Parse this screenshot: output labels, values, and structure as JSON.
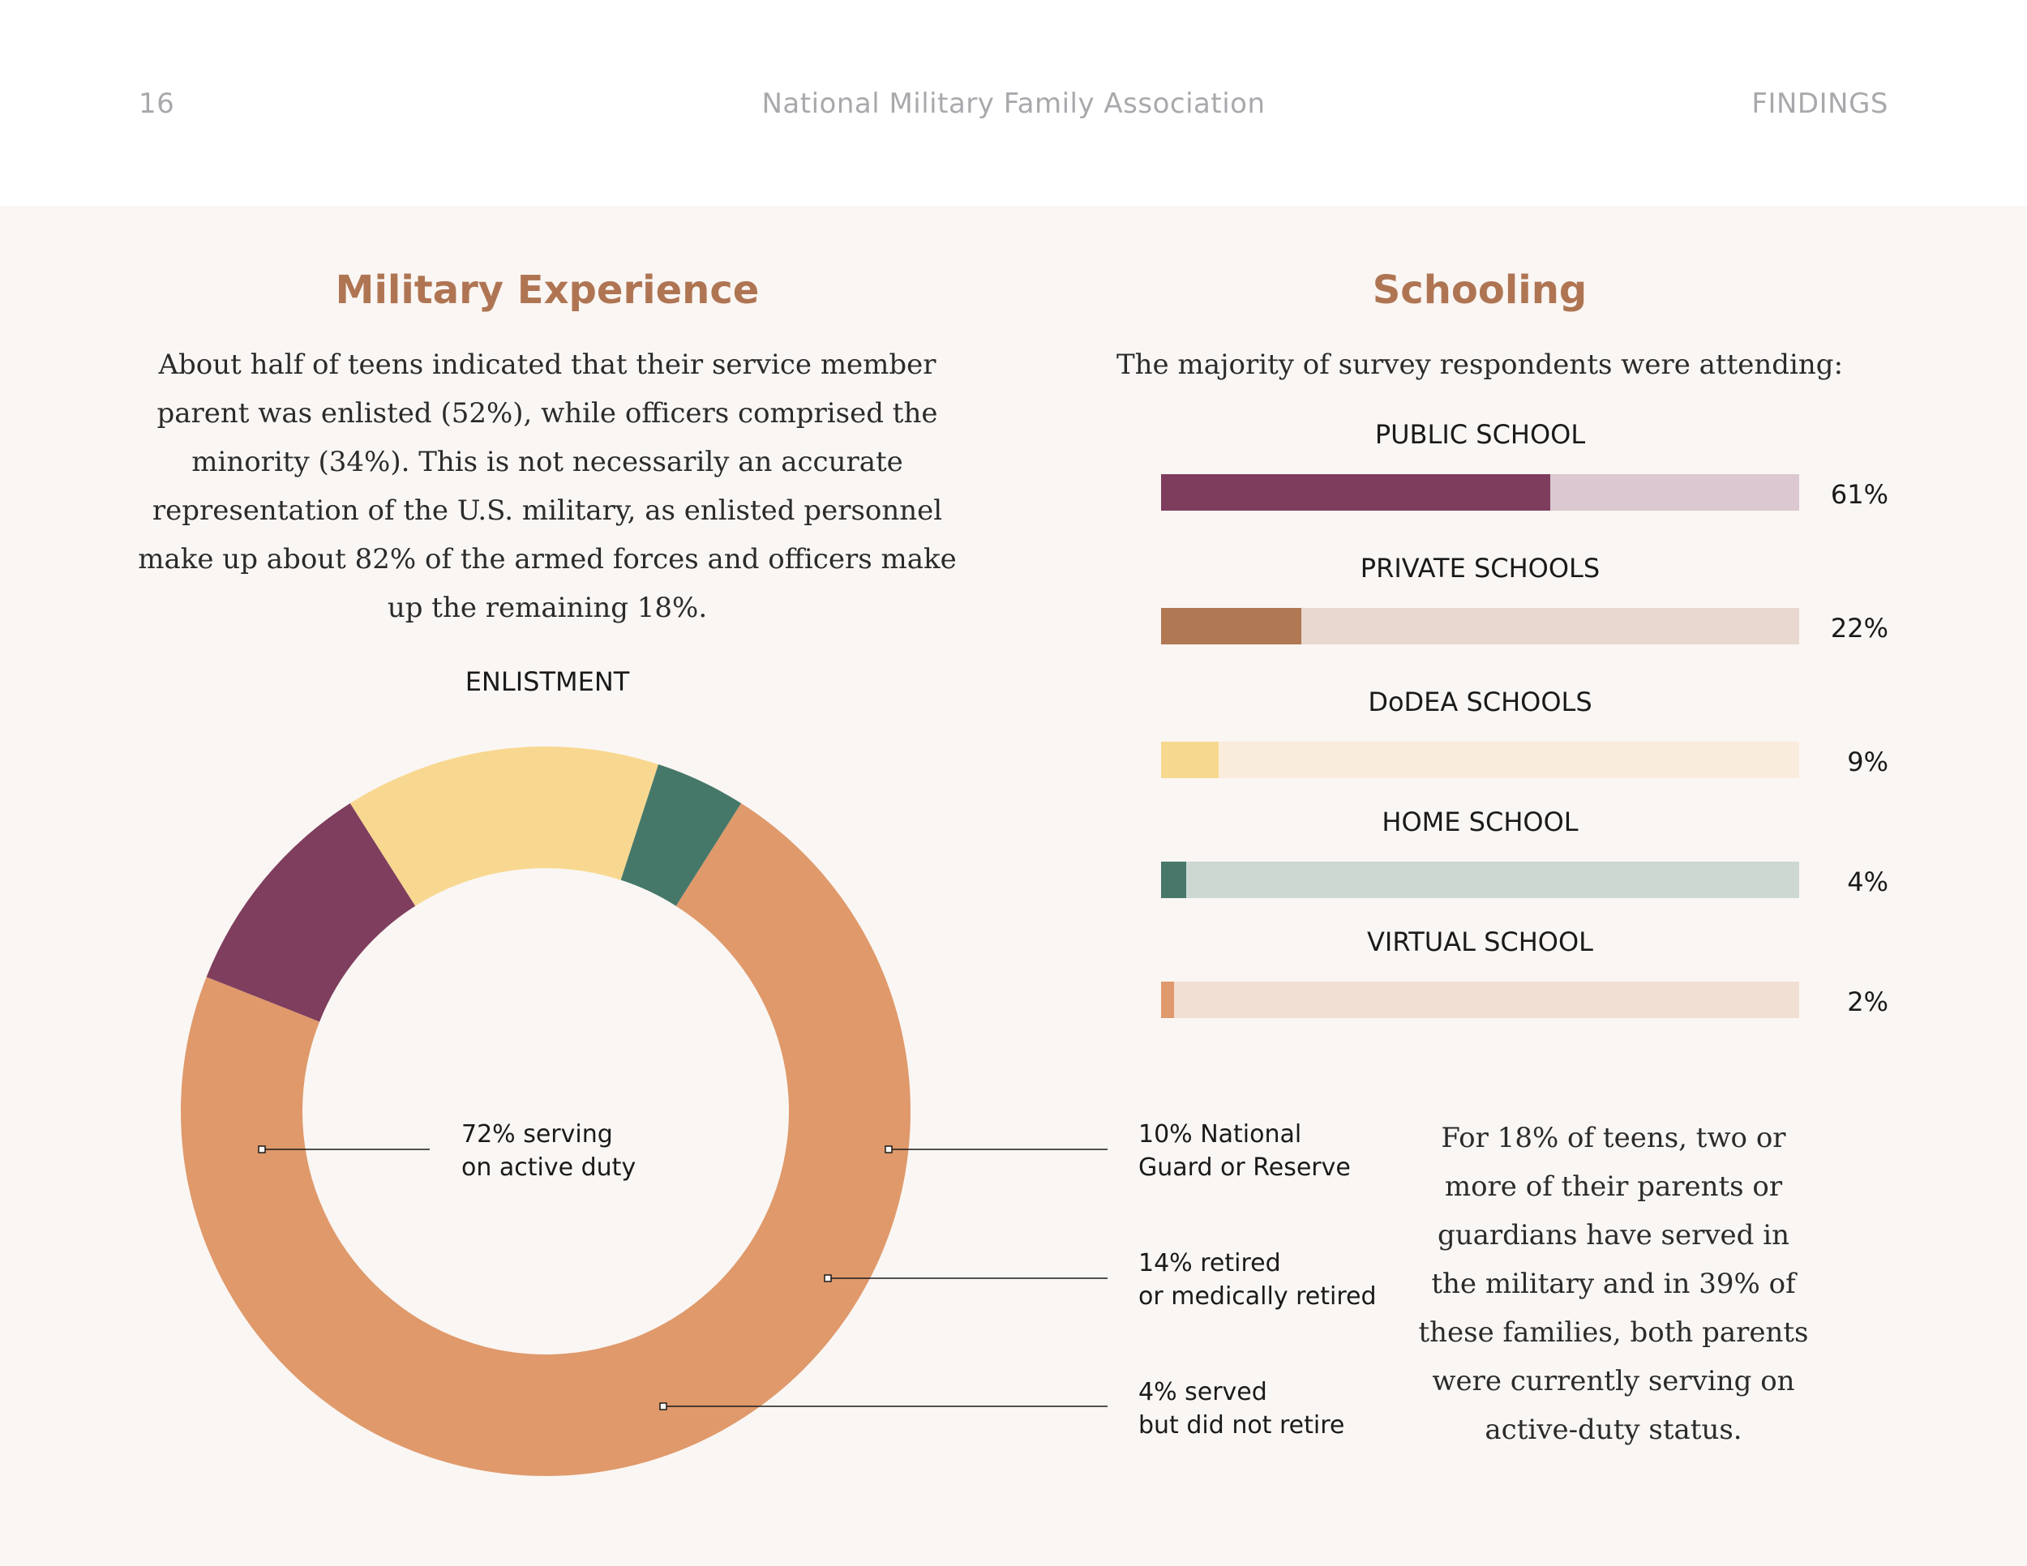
{
  "header": {
    "page_number": "16",
    "organization": "National Military Family Association",
    "section": "FINDINGS"
  },
  "military_experience": {
    "title": "Military Experience",
    "paragraph": "About half of teens indicated that their service member parent was enlisted (52%), while officers comprised the minority (34%). This is not necessarily an accurate representation of the U.S. military, as enlisted personnel make up about 82% of the armed forces and officers make up the remaining 18%."
  },
  "schooling": {
    "title": "Schooling",
    "intro": "The majority of survey respondents were attending:",
    "note": "For 18% of teens, two or more of their parents or guardians have served in the military and in 39% of these families, both parents were currently serving on active-duty status."
  },
  "callouts": {
    "active_duty": [
      "72% serving",
      "on active duty"
    ],
    "guard": [
      "10% National",
      "Guard or Reserve"
    ],
    "retired": [
      "14% retired",
      "or medically retired"
    ],
    "served": [
      "4% served",
      "but did not retire"
    ]
  },
  "chart_data": [
    {
      "type": "pie",
      "title": "ENLISTMENT",
      "slices": [
        {
          "label": "serving on active duty",
          "value": 72,
          "color": "#df996b"
        },
        {
          "label": "National Guard or Reserve",
          "value": 10,
          "color": "#7f3e5e"
        },
        {
          "label": "retired or medically retired",
          "value": 14,
          "color": "#f8d890"
        },
        {
          "label": "served but did not retire",
          "value": 4,
          "color": "#46786a"
        }
      ]
    },
    {
      "type": "bar",
      "orientation": "horizontal",
      "categories": [
        "PUBLIC SCHOOL",
        "PRIVATE SCHOOLS",
        "DoDEA SCHOOLS",
        "HOME SCHOOL",
        "VIRTUAL SCHOOL"
      ],
      "values": [
        61,
        22,
        9,
        4,
        2
      ],
      "value_labels": [
        "61%",
        "22%",
        "9%",
        "4%",
        "2%"
      ],
      "colors": [
        "#7f3d5e",
        "#b07853",
        "#f6d98f",
        "#47786a",
        "#df996c"
      ],
      "track_colors": [
        "#dbc8d1",
        "#e8d8cf",
        "#f9ecdc",
        "#cdd8d3",
        "#f2dfd3"
      ],
      "xlim": [
        0,
        100
      ]
    }
  ]
}
